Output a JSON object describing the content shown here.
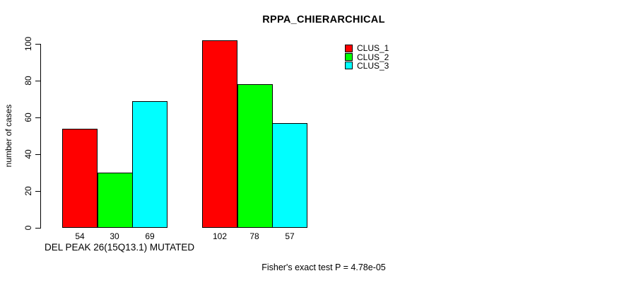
{
  "chart_data": {
    "type": "bar",
    "title": "RPPA_CHIERARCHICAL",
    "ylabel": "number of cases",
    "xlabel": "DEL PEAK 26(15Q13.1) MUTATED",
    "ylim": [
      0,
      100
    ],
    "yticks": [
      0,
      20,
      40,
      60,
      80,
      100
    ],
    "categories": [
      "DEL PEAK 26(15Q13.1) MUTATED",
      ""
    ],
    "series": [
      {
        "name": "CLUS_1",
        "color": "#ff0000",
        "values": [
          54,
          102
        ]
      },
      {
        "name": "CLUS_2",
        "color": "#00ff00",
        "values": [
          30,
          78
        ]
      },
      {
        "name": "CLUS_3",
        "color": "#00ffff",
        "values": [
          69,
          57
        ]
      }
    ],
    "bar_value_labels": [
      [
        54,
        30,
        69
      ],
      [
        102,
        78,
        57
      ]
    ],
    "legend": {
      "position": "top-right",
      "entries": [
        "CLUS_1",
        "CLUS_2",
        "CLUS_3"
      ]
    },
    "grid": false,
    "axis_color": "#000000",
    "background": "#ffffff",
    "footer": "Fisher's exact test P = 4.78e-05"
  }
}
